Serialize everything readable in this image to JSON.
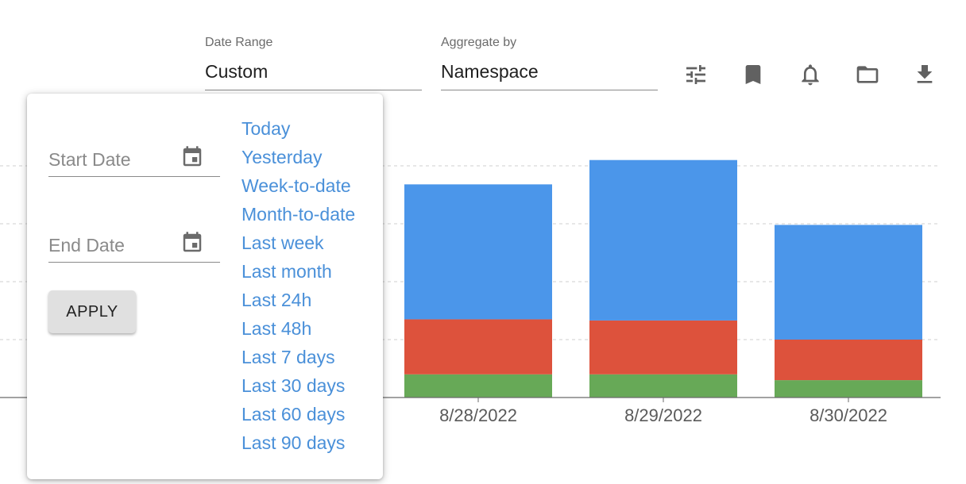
{
  "filters": {
    "date_range": {
      "label": "Date Range",
      "value": "Custom"
    },
    "aggregate_by": {
      "label": "Aggregate by",
      "value": "Namespace"
    }
  },
  "toolbar": {
    "icons": [
      "tune-icon",
      "bookmark-icon",
      "bell-icon",
      "folder-icon",
      "download-icon"
    ]
  },
  "date_picker": {
    "start_placeholder": "Start Date",
    "end_placeholder": "End Date",
    "apply_label": "APPLY",
    "presets": [
      "Today",
      "Yesterday",
      "Week-to-date",
      "Month-to-date",
      "Last week",
      "Last month",
      "Last 24h",
      "Last 48h",
      "Last 7 days",
      "Last 30 days",
      "Last 60 days",
      "Last 90 days"
    ]
  },
  "colors": {
    "accent_link": "#4a90d9",
    "series_blue": "#4b96ea",
    "series_red": "#dd523c",
    "series_green": "#67a957"
  },
  "chart_data": {
    "type": "bar",
    "stacked": true,
    "categories": [
      "8/28/2022",
      "8/29/2022",
      "8/30/2022"
    ],
    "series": [
      {
        "color": "#67a957",
        "values": [
          0.4,
          0.4,
          0.3
        ]
      },
      {
        "color": "#dd523c",
        "values": [
          0.95,
          0.93,
          0.7
        ]
      },
      {
        "color": "#4b96ea",
        "values": [
          2.33,
          2.77,
          1.98
        ]
      }
    ],
    "ylim": [
      0,
      4
    ],
    "grid": true
  }
}
